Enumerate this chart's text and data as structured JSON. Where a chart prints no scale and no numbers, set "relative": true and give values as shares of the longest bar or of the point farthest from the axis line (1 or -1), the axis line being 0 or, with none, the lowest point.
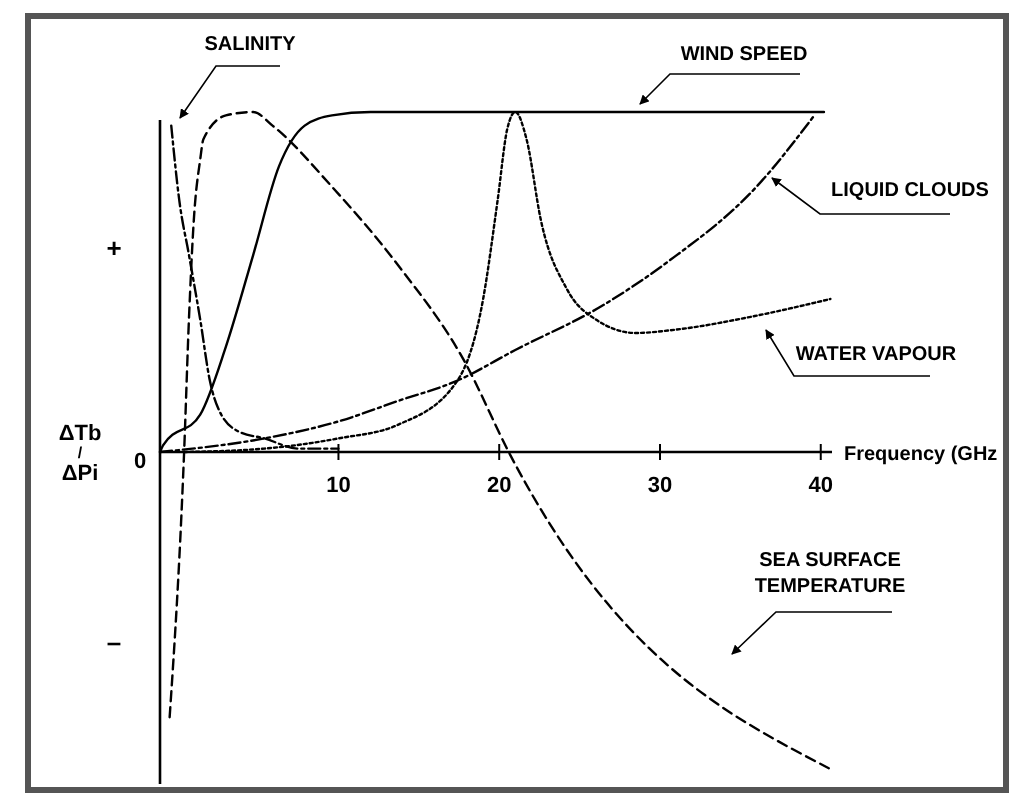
{
  "chart_data": {
    "type": "line",
    "relative": true,
    "xlabel": "Frequency (GHz",
    "ylabel": "ΔTb/ΔPi",
    "xlim": [
      -1.1,
      40.7
    ],
    "xticks": [
      10,
      20,
      30,
      40
    ],
    "annotations": [
      "+",
      "0",
      "–"
    ],
    "legend": false,
    "grid": false,
    "marker": "none",
    "series": [
      {
        "name": "SALINITY",
        "color": "#000000",
        "line_style": "dashdot",
        "x": [
          -0.4,
          0.1,
          0.7,
          1.4,
          2.0,
          2.6,
          3.8,
          5.4,
          7.5,
          10
        ],
        "values": [
          0.96,
          0.74,
          0.58,
          0.39,
          0.21,
          0.12,
          0.06,
          0.04,
          0.01,
          0.01
        ]
      },
      {
        "name": "WIND SPEED",
        "color": "#000000",
        "line_style": "solid",
        "x": [
          -1.1,
          -0.9,
          1.4,
          3.0,
          4.7,
          6.3,
          7.9,
          9.6,
          12,
          40.2
        ],
        "values": [
          0,
          0.02,
          0.11,
          0.31,
          0.58,
          0.84,
          0.96,
          0.99,
          1,
          1
        ]
      },
      {
        "name": "LIQUID CLOUDS",
        "color": "#000000",
        "line_style": "dashdot",
        "x": [
          -1.1,
          5.4,
          10,
          13.7,
          17.4,
          21,
          26.4,
          30.5,
          36,
          39.6
        ],
        "values": [
          0,
          0.04,
          0.09,
          0.15,
          0.21,
          0.3,
          0.43,
          0.56,
          0.78,
          0.99
        ]
      },
      {
        "name": "WATER VAPOUR",
        "color": "#000000",
        "line_style": "dotted",
        "x": [
          0.4,
          5.4,
          10,
          13.7,
          17.4,
          19,
          19.9,
          20.5,
          21,
          21.7,
          22.6,
          24.2,
          26,
          28.5,
          31,
          35.9,
          40.6
        ],
        "values": [
          0,
          0.01,
          0.04,
          0.08,
          0.21,
          0.45,
          0.74,
          0.95,
          1,
          0.92,
          0.68,
          0.48,
          0.39,
          0.35,
          0.36,
          0.4,
          0.45
        ]
      },
      {
        "name": "SEA SURFACE TEMPERATURE",
        "color": "#000000",
        "line_style": "dashed",
        "x": [
          -0.5,
          0.4,
          0.7,
          1.0,
          1.4,
          1.6,
          3.0,
          4.7,
          5.9,
          9.6,
          13.7,
          17.8,
          20.7,
          40.5
        ],
        "values": [
          -0.78,
          0,
          0.39,
          0.68,
          0.86,
          0.92,
          0.99,
          1,
          0.96,
          0.78,
          0.55,
          0.27,
          -0.01,
          -0.93
        ]
      }
    ]
  }
}
